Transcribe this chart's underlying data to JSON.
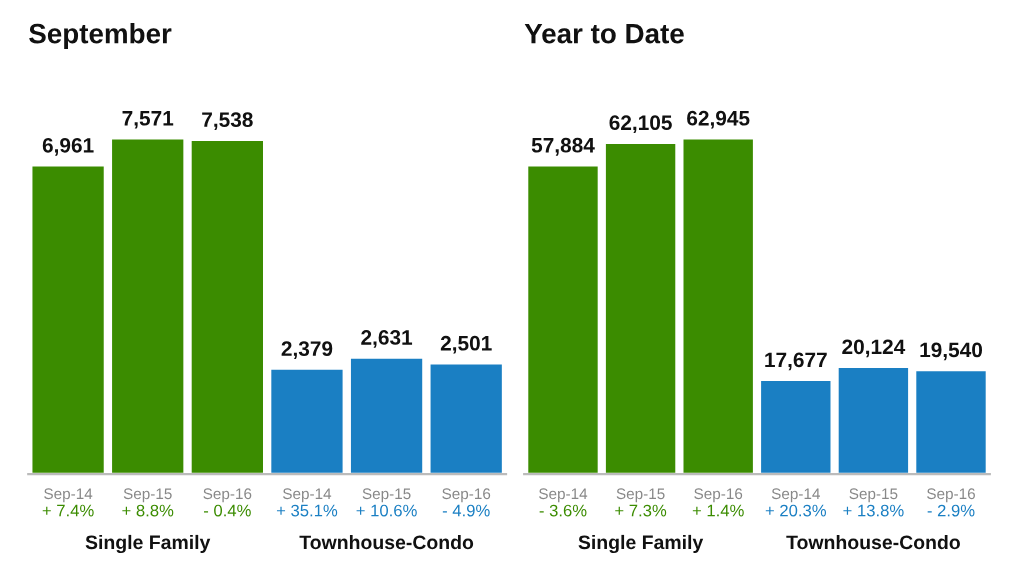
{
  "chart_data": [
    {
      "type": "bar",
      "title": "September",
      "categories": [
        "Sep-14",
        "Sep-15",
        "Sep-16",
        "Sep-14",
        "Sep-15",
        "Sep-16"
      ],
      "values": [
        6961,
        7571,
        7538,
        2379,
        2631,
        2501
      ],
      "colors": [
        "#3b8c00",
        "#3b8c00",
        "#3b8c00",
        "#1a7fc3",
        "#1a7fc3",
        "#1a7fc3"
      ],
      "value_labels": [
        "6,961",
        "7,571",
        "7,538",
        "2,379",
        "2,631",
        "2,501"
      ],
      "annotations": [
        "+ 7.4%",
        "+ 8.8%",
        "- 0.4%",
        "+ 35.1%",
        "+ 10.6%",
        "- 4.9%",
        "Single Family",
        "Townhouse-Condo"
      ],
      "grid": false,
      "legend": false
    },
    {
      "type": "bar",
      "title": "Year to Date",
      "categories": [
        "Sep-14",
        "Sep-15",
        "Sep-16",
        "Sep-14",
        "Sep-15",
        "Sep-16"
      ],
      "values": [
        57884,
        62105,
        62945,
        17677,
        20124,
        19540
      ],
      "colors": [
        "#3b8c00",
        "#3b8c00",
        "#3b8c00",
        "#1a7fc3",
        "#1a7fc3",
        "#1a7fc3"
      ],
      "value_labels": [
        "57,884",
        "62,105",
        "62,945",
        "17,677",
        "20,124",
        "19,540"
      ],
      "annotations": [
        "- 3.6%",
        "+ 7.3%",
        "+ 1.4%",
        "+ 20.3%",
        "+ 13.8%",
        "- 2.9%",
        "Single Family",
        "Townhouse-Condo"
      ],
      "grid": false,
      "legend": false
    }
  ]
}
